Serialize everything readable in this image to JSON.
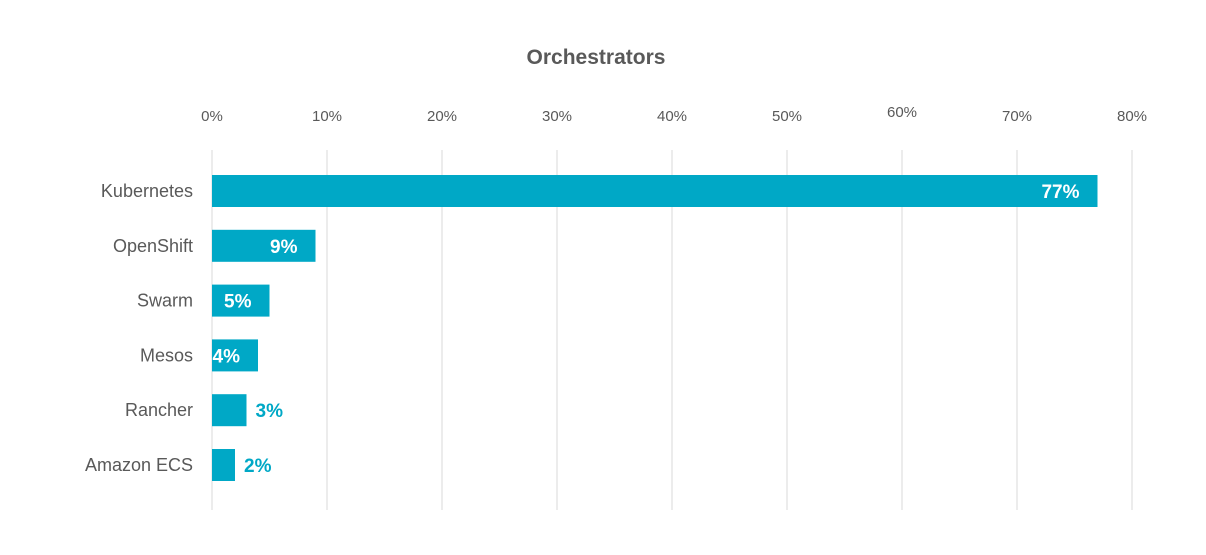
{
  "chart_data": {
    "type": "bar",
    "orientation": "horizontal",
    "title": "Orchestrators",
    "categories": [
      "Kubernetes",
      "OpenShift",
      "Swarm",
      "Mesos",
      "Rancher",
      "Amazon ECS"
    ],
    "values": [
      77,
      9,
      5,
      4,
      3,
      2
    ],
    "value_labels": [
      "77%",
      "9%",
      "5%",
      "4%",
      "3%",
      "2%"
    ],
    "x_ticks": [
      "0%",
      "10%",
      "20%",
      "30%",
      "40%",
      "50%",
      "60%",
      "70%",
      "80%"
    ],
    "x_tick_values": [
      0,
      10,
      20,
      30,
      40,
      50,
      60,
      70,
      80
    ],
    "xlim": [
      0,
      80
    ],
    "x_axis_position": "top",
    "xlabel": "",
    "ylabel": "",
    "grid": true,
    "legend": "none",
    "colors": {
      "bar": "#00a8c6",
      "label_inside": "#ffffff",
      "label_outside": "#00a8c6",
      "text": "#595959",
      "grid": "#d9d9d9"
    }
  }
}
